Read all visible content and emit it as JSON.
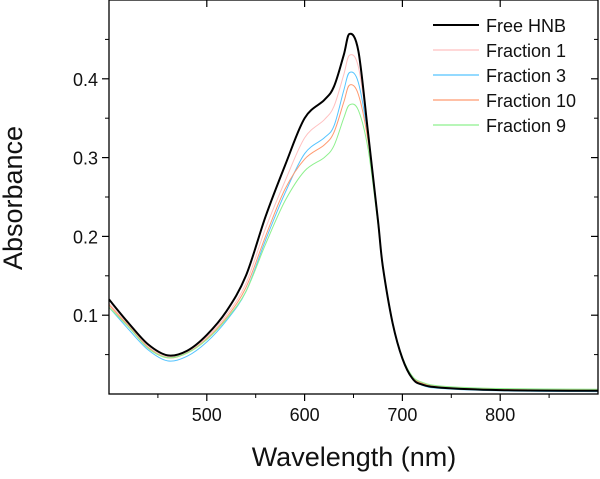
{
  "chart_data": {
    "type": "line",
    "title": "",
    "xlabel": "Wavelength (nm)",
    "ylabel": "Absorbance",
    "xlim": [
      400,
      900
    ],
    "ylim": [
      0,
      0.5
    ],
    "xticks": [
      500,
      600,
      700,
      800
    ],
    "xtick_labels": [
      "500",
      "600",
      "700",
      "800"
    ],
    "yticks": [
      0.1,
      0.2,
      0.3,
      0.4
    ],
    "ytick_labels": [
      "0.1",
      "0.2",
      "0.3",
      "0.4"
    ],
    "grid": false,
    "legend_position": "top-right",
    "x": [
      400,
      420,
      440,
      460,
      480,
      500,
      520,
      540,
      560,
      580,
      600,
      620,
      630,
      640,
      646,
      655,
      665,
      675,
      680,
      690,
      700,
      710,
      720,
      740,
      800,
      900
    ],
    "series": [
      {
        "name": "Free HNB",
        "color": "#000000",
        "values": [
          0.12,
          0.09,
          0.063,
          0.049,
          0.055,
          0.075,
          0.105,
          0.15,
          0.225,
          0.29,
          0.35,
          0.373,
          0.39,
          0.43,
          0.457,
          0.435,
          0.33,
          0.22,
          0.162,
          0.09,
          0.045,
          0.02,
          0.012,
          0.008,
          0.005,
          0.004
        ]
      },
      {
        "name": "Fraction 1",
        "color": "#ffc0c0",
        "values": [
          0.115,
          0.087,
          0.06,
          0.047,
          0.053,
          0.072,
          0.1,
          0.14,
          0.21,
          0.27,
          0.325,
          0.348,
          0.365,
          0.405,
          0.43,
          0.415,
          0.33,
          0.22,
          0.162,
          0.09,
          0.045,
          0.021,
          0.013,
          0.009,
          0.006,
          0.005
        ]
      },
      {
        "name": "Fraction 3",
        "color": "#55c4ff",
        "values": [
          0.11,
          0.082,
          0.056,
          0.042,
          0.048,
          0.066,
          0.093,
          0.13,
          0.195,
          0.255,
          0.305,
          0.325,
          0.34,
          0.385,
          0.408,
          0.395,
          0.325,
          0.22,
          0.16,
          0.088,
          0.044,
          0.02,
          0.011,
          0.007,
          0.004,
          0.003
        ]
      },
      {
        "name": "Fraction 10",
        "color": "#ff9a70",
        "values": [
          0.113,
          0.086,
          0.059,
          0.046,
          0.052,
          0.07,
          0.097,
          0.135,
          0.2,
          0.26,
          0.298,
          0.316,
          0.332,
          0.37,
          0.392,
          0.38,
          0.32,
          0.22,
          0.162,
          0.09,
          0.046,
          0.022,
          0.014,
          0.009,
          0.006,
          0.005
        ]
      },
      {
        "name": "Fraction 9",
        "color": "#8ef08e",
        "values": [
          0.11,
          0.085,
          0.058,
          0.046,
          0.052,
          0.069,
          0.095,
          0.13,
          0.19,
          0.245,
          0.283,
          0.3,
          0.315,
          0.35,
          0.367,
          0.36,
          0.31,
          0.215,
          0.16,
          0.09,
          0.047,
          0.023,
          0.015,
          0.01,
          0.007,
          0.006
        ]
      }
    ]
  }
}
